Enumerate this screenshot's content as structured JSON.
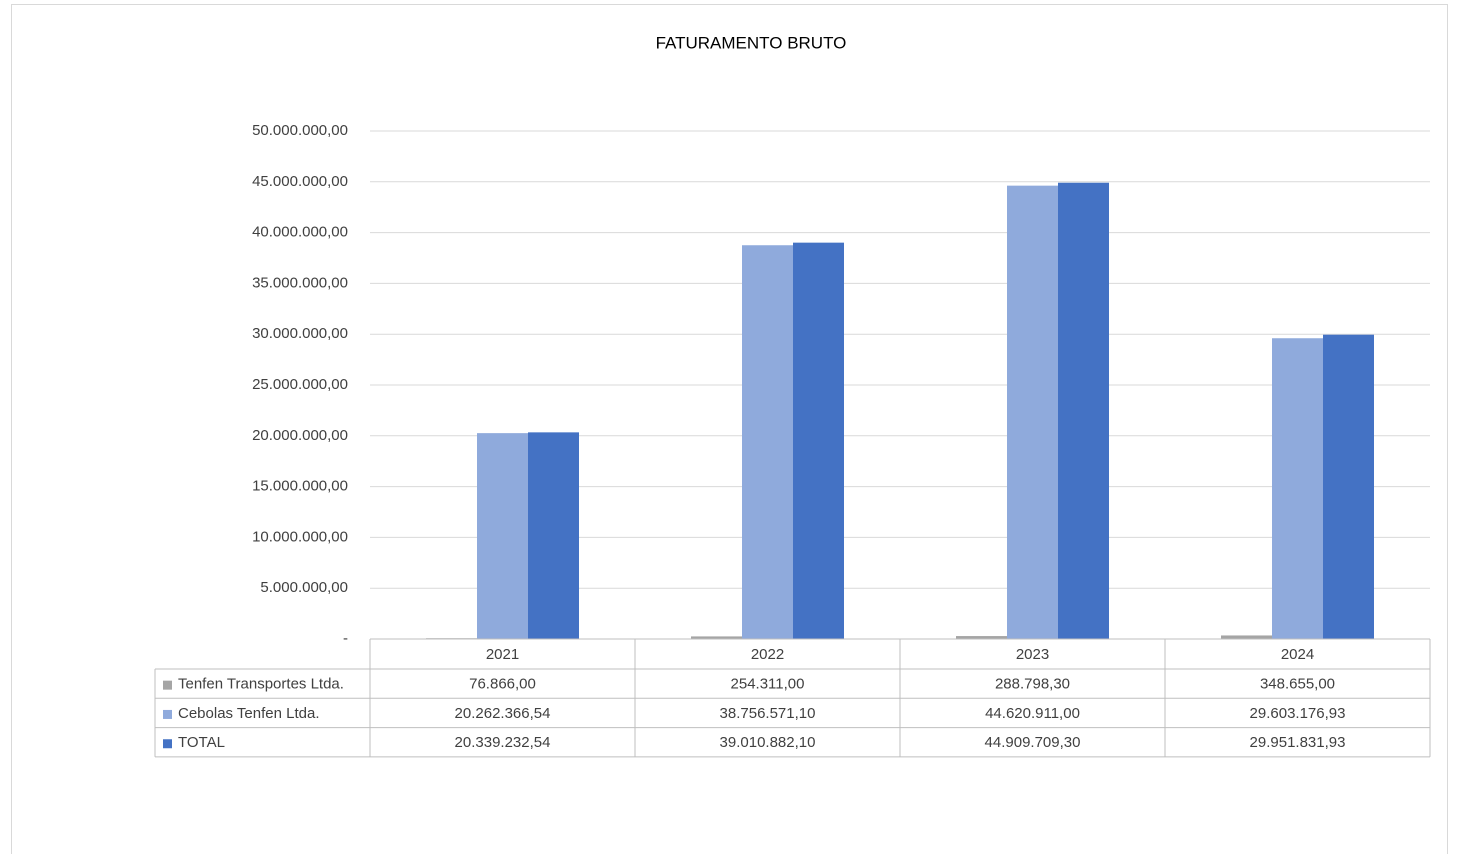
{
  "chart_data": {
    "type": "bar",
    "title": "FATURAMENTO BRUTO",
    "categories": [
      "2021",
      "2022",
      "2023",
      "2024"
    ],
    "series": [
      {
        "name": "Tenfen Transportes Ltda.",
        "color": "#a5a5a5",
        "values": [
          76866.0,
          254311.0,
          288798.3,
          348655.0
        ],
        "value_labels": [
          "76.866,00",
          "254.311,00",
          "288.798,30",
          "348.655,00"
        ]
      },
      {
        "name": "Cebolas Tenfen Ltda.",
        "color": "#8faadc",
        "values": [
          20262366.54,
          38756571.1,
          44620911.0,
          29603176.93
        ],
        "value_labels": [
          "20.262.366,54",
          "38.756.571,10",
          "44.620.911,00",
          "29.603.176,93"
        ]
      },
      {
        "name": "TOTAL",
        "color": "#4472c4",
        "values": [
          20339232.54,
          39010882.1,
          44909709.3,
          29951831.93
        ],
        "value_labels": [
          "20.339.232,54",
          "39.010.882,10",
          "44.909.709,30",
          "29.951.831,93"
        ]
      }
    ],
    "ylim": [
      0,
      50000000
    ],
    "yticks": [
      {
        "value": 0,
        "label": "-"
      },
      {
        "value": 5000000,
        "label": "5.000.000,00"
      },
      {
        "value": 10000000,
        "label": "10.000.000,00"
      },
      {
        "value": 15000000,
        "label": "15.000.000,00"
      },
      {
        "value": 20000000,
        "label": "20.000.000,00"
      },
      {
        "value": 25000000,
        "label": "25.000.000,00"
      },
      {
        "value": 30000000,
        "label": "30.000.000,00"
      },
      {
        "value": 35000000,
        "label": "35.000.000,00"
      },
      {
        "value": 40000000,
        "label": "40.000.000,00"
      },
      {
        "value": 45000000,
        "label": "45.000.000,00"
      },
      {
        "value": 50000000,
        "label": "50.000.000,00"
      }
    ],
    "grid": true
  }
}
